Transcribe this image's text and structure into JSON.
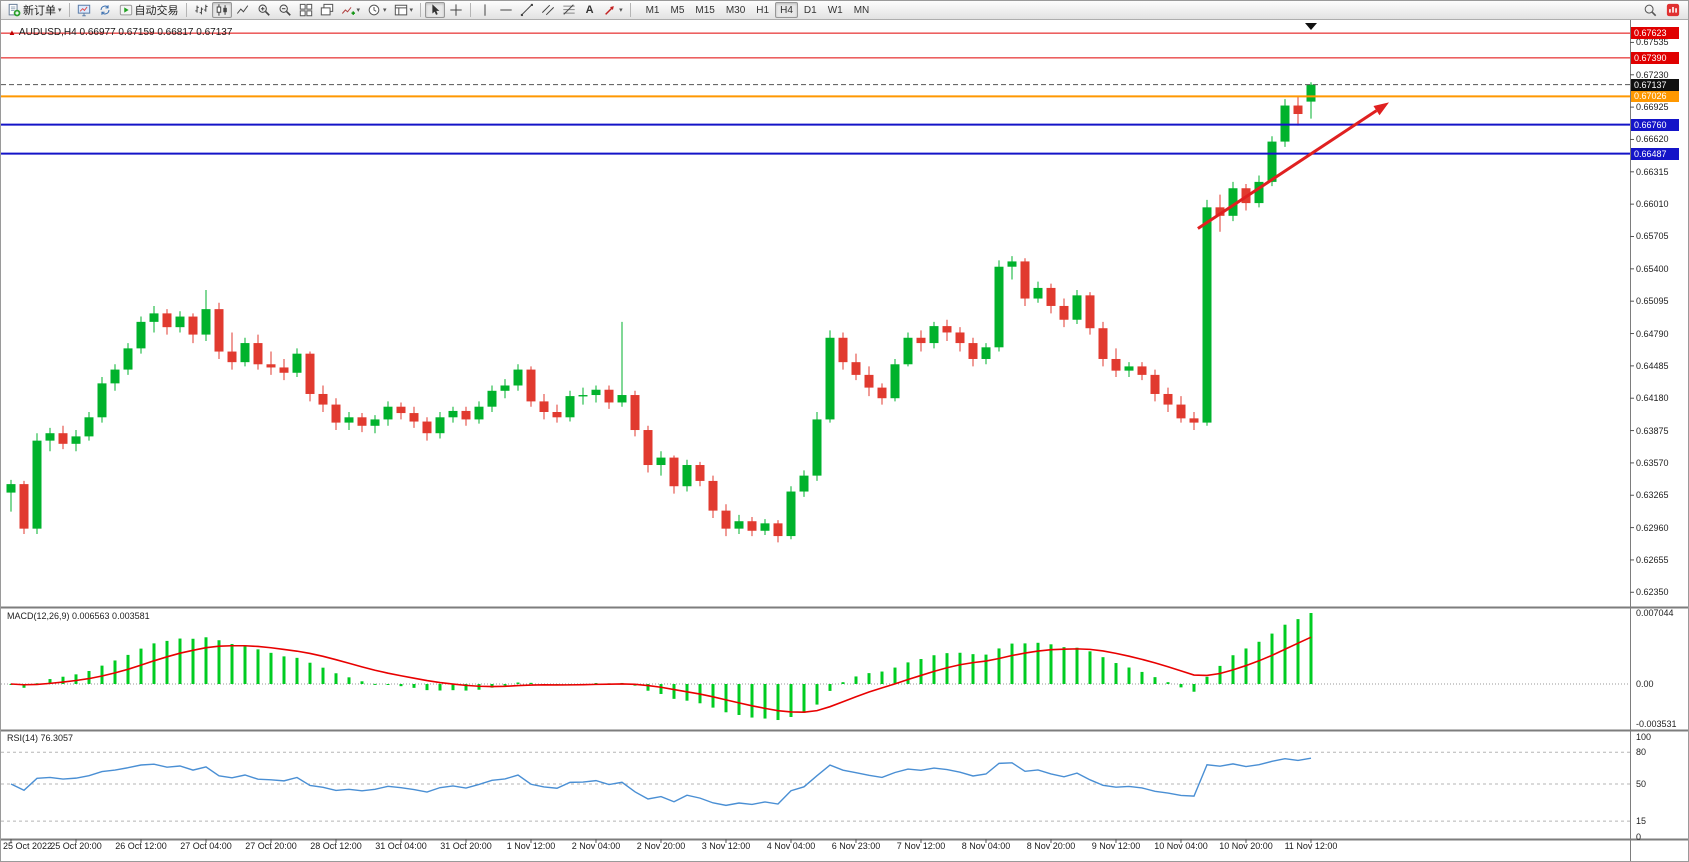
{
  "toolbar": {
    "new_order_label": "新订单",
    "auto_trading_label": "自动交易",
    "text_tool_label": "A",
    "timeframes": [
      "M1",
      "M5",
      "M15",
      "M30",
      "H1",
      "H4",
      "D1",
      "W1",
      "MN"
    ],
    "active_timeframe": "H4"
  },
  "chart": {
    "symbol_ohlc_label": "AUDUSD,H4 0.66977 0.67159 0.66817 0.67137"
  },
  "chart_data": {
    "type": "candlestick",
    "symbol": "AUDUSD",
    "timeframe": "H4",
    "ohlc": {
      "open": 0.66977,
      "high": 0.67159,
      "low": 0.66817,
      "close": 0.67137
    },
    "colors": {
      "up": "#00b22c",
      "down": "#e13a2f",
      "macd_hist": "#00cc22",
      "macd_signal": "#e80000",
      "rsi": "#4a8fd4",
      "resistance": "#e00000",
      "pivot": "#ff9800",
      "support": "#1414c8",
      "arrow": "#e02020",
      "current": "#101010"
    },
    "price_axis_ticks": [
      "0.67535",
      "0.67230",
      "0.66925",
      "0.66620",
      "0.66315",
      "0.66010",
      "0.65705",
      "0.65400",
      "0.65095",
      "0.64790",
      "0.64485",
      "0.64180",
      "0.63875",
      "0.63570",
      "0.63265",
      "0.62960",
      "0.62655",
      "0.62350"
    ],
    "hlines": [
      {
        "price": 0.67623,
        "label": "0.67623",
        "color": "#e00000",
        "width": 1
      },
      {
        "price": 0.6739,
        "label": "0.67390",
        "color": "#e00000",
        "width": 1
      },
      {
        "price": 0.67026,
        "label": "0.67026",
        "color": "#ff9800",
        "width": 2
      },
      {
        "price": 0.6676,
        "label": "0.66760",
        "color": "#1414c8",
        "width": 2
      },
      {
        "price": 0.66487,
        "label": "0.66487",
        "color": "#1414c8",
        "width": 2
      }
    ],
    "current_price": {
      "value": 0.67137,
      "label": "0.67137"
    },
    "arrow": {
      "from_index": 91.3,
      "from_price": 0.6578,
      "to_index": 106,
      "to_price": 0.6697
    },
    "time_labels": [
      "25 Oct 2022",
      "25 Oct 20:00",
      "26 Oct 12:00",
      "27 Oct 04:00",
      "27 Oct 20:00",
      "28 Oct 12:00",
      "31 Oct 04:00",
      "31 Oct 20:00",
      "1 Nov 12:00",
      "2 Nov 04:00",
      "2 Nov 20:00",
      "3 Nov 12:00",
      "4 Nov 04:00",
      "6 Nov 23:00",
      "7 Nov 12:00",
      "8 Nov 04:00",
      "8 Nov 20:00",
      "9 Nov 12:00",
      "10 Nov 04:00",
      "10 Nov 20:00",
      "11 Nov 12:00"
    ],
    "label_every_n_candles": 5,
    "candles": [
      [
        0.6329,
        0.6341,
        0.6311,
        0.6337
      ],
      [
        0.6337,
        0.634,
        0.629,
        0.6295
      ],
      [
        0.6295,
        0.6385,
        0.629,
        0.6378
      ],
      [
        0.6378,
        0.639,
        0.6368,
        0.6385
      ],
      [
        0.6385,
        0.6392,
        0.637,
        0.6375
      ],
      [
        0.6375,
        0.6388,
        0.6368,
        0.6382
      ],
      [
        0.6382,
        0.6405,
        0.6378,
        0.64
      ],
      [
        0.64,
        0.6438,
        0.6395,
        0.6432
      ],
      [
        0.6432,
        0.645,
        0.6425,
        0.6445
      ],
      [
        0.6445,
        0.647,
        0.644,
        0.6465
      ],
      [
        0.6465,
        0.6495,
        0.646,
        0.649
      ],
      [
        0.649,
        0.6505,
        0.648,
        0.6498
      ],
      [
        0.6498,
        0.6502,
        0.6478,
        0.6485
      ],
      [
        0.6485,
        0.65,
        0.648,
        0.6495
      ],
      [
        0.6495,
        0.6498,
        0.647,
        0.6478
      ],
      [
        0.6478,
        0.652,
        0.6472,
        0.6502
      ],
      [
        0.6502,
        0.6508,
        0.6455,
        0.6462
      ],
      [
        0.6462,
        0.648,
        0.6445,
        0.6452
      ],
      [
        0.6452,
        0.6475,
        0.6448,
        0.647
      ],
      [
        0.647,
        0.6478,
        0.6445,
        0.645
      ],
      [
        0.645,
        0.6462,
        0.644,
        0.6447
      ],
      [
        0.6447,
        0.6455,
        0.6435,
        0.6442
      ],
      [
        0.6442,
        0.6465,
        0.6438,
        0.646
      ],
      [
        0.646,
        0.6462,
        0.6415,
        0.6422
      ],
      [
        0.6422,
        0.643,
        0.6405,
        0.6412
      ],
      [
        0.6412,
        0.6418,
        0.6388,
        0.6395
      ],
      [
        0.6395,
        0.6405,
        0.6388,
        0.64
      ],
      [
        0.64,
        0.6404,
        0.6386,
        0.6392
      ],
      [
        0.6392,
        0.6402,
        0.6385,
        0.6398
      ],
      [
        0.6398,
        0.6415,
        0.6392,
        0.641
      ],
      [
        0.641,
        0.6414,
        0.6398,
        0.6404
      ],
      [
        0.6404,
        0.641,
        0.639,
        0.6396
      ],
      [
        0.6396,
        0.64,
        0.6378,
        0.6385
      ],
      [
        0.6385,
        0.6405,
        0.638,
        0.64
      ],
      [
        0.64,
        0.641,
        0.6395,
        0.6406
      ],
      [
        0.6406,
        0.641,
        0.6392,
        0.6398
      ],
      [
        0.6398,
        0.6415,
        0.6394,
        0.641
      ],
      [
        0.641,
        0.643,
        0.6405,
        0.6425
      ],
      [
        0.6425,
        0.6436,
        0.6418,
        0.643
      ],
      [
        0.643,
        0.645,
        0.6425,
        0.6445
      ],
      [
        0.6445,
        0.6448,
        0.641,
        0.6415
      ],
      [
        0.6415,
        0.6422,
        0.6398,
        0.6405
      ],
      [
        0.6405,
        0.6412,
        0.6395,
        0.64
      ],
      [
        0.64,
        0.6425,
        0.6396,
        0.642
      ],
      [
        0.642,
        0.6428,
        0.6412,
        0.6421
      ],
      [
        0.6421,
        0.643,
        0.6414,
        0.6426
      ],
      [
        0.6426,
        0.643,
        0.6408,
        0.6414
      ],
      [
        0.6414,
        0.649,
        0.641,
        0.6421
      ],
      [
        0.6421,
        0.6425,
        0.6382,
        0.6388
      ],
      [
        0.6388,
        0.6392,
        0.6348,
        0.6355
      ],
      [
        0.6355,
        0.6368,
        0.6345,
        0.6362
      ],
      [
        0.6362,
        0.6364,
        0.6328,
        0.6335
      ],
      [
        0.6335,
        0.636,
        0.633,
        0.6355
      ],
      [
        0.6355,
        0.6358,
        0.6335,
        0.634
      ],
      [
        0.634,
        0.6345,
        0.6305,
        0.6312
      ],
      [
        0.6312,
        0.6318,
        0.6288,
        0.6295
      ],
      [
        0.6295,
        0.6308,
        0.629,
        0.6302
      ],
      [
        0.6302,
        0.6306,
        0.6288,
        0.6293
      ],
      [
        0.6293,
        0.6304,
        0.6289,
        0.63
      ],
      [
        0.63,
        0.6303,
        0.6282,
        0.6288
      ],
      [
        0.6288,
        0.6335,
        0.6285,
        0.633
      ],
      [
        0.633,
        0.635,
        0.6325,
        0.6345
      ],
      [
        0.6345,
        0.6405,
        0.634,
        0.6398
      ],
      [
        0.6398,
        0.6482,
        0.6395,
        0.6475
      ],
      [
        0.6475,
        0.648,
        0.6445,
        0.6452
      ],
      [
        0.6452,
        0.646,
        0.6435,
        0.644
      ],
      [
        0.644,
        0.6448,
        0.642,
        0.6428
      ],
      [
        0.6428,
        0.6432,
        0.6412,
        0.6418
      ],
      [
        0.6418,
        0.6455,
        0.6415,
        0.645
      ],
      [
        0.645,
        0.648,
        0.6448,
        0.6475
      ],
      [
        0.6475,
        0.6482,
        0.6462,
        0.647
      ],
      [
        0.647,
        0.649,
        0.6465,
        0.6486
      ],
      [
        0.6486,
        0.6492,
        0.6472,
        0.648
      ],
      [
        0.648,
        0.6485,
        0.6462,
        0.647
      ],
      [
        0.647,
        0.6475,
        0.6448,
        0.6455
      ],
      [
        0.6455,
        0.647,
        0.645,
        0.6466
      ],
      [
        0.6466,
        0.6548,
        0.6462,
        0.6542
      ],
      [
        0.6542,
        0.6552,
        0.653,
        0.6547
      ],
      [
        0.6547,
        0.655,
        0.6505,
        0.6512
      ],
      [
        0.6512,
        0.6528,
        0.6508,
        0.6522
      ],
      [
        0.6522,
        0.6526,
        0.6498,
        0.6505
      ],
      [
        0.6505,
        0.6512,
        0.6485,
        0.6492
      ],
      [
        0.6492,
        0.652,
        0.6488,
        0.6515
      ],
      [
        0.6515,
        0.6518,
        0.6478,
        0.6484
      ],
      [
        0.6484,
        0.649,
        0.6448,
        0.6455
      ],
      [
        0.6455,
        0.6465,
        0.6438,
        0.6444
      ],
      [
        0.6444,
        0.6452,
        0.6438,
        0.6448
      ],
      [
        0.6448,
        0.6452,
        0.6435,
        0.644
      ],
      [
        0.644,
        0.6445,
        0.6415,
        0.6422
      ],
      [
        0.6422,
        0.6428,
        0.6405,
        0.6412
      ],
      [
        0.6412,
        0.642,
        0.6395,
        0.6399
      ],
      [
        0.6399,
        0.6405,
        0.6388,
        0.6395
      ],
      [
        0.6395,
        0.6605,
        0.6392,
        0.6598
      ],
      [
        0.6598,
        0.661,
        0.6575,
        0.659
      ],
      [
        0.659,
        0.6622,
        0.6585,
        0.6616
      ],
      [
        0.6616,
        0.662,
        0.6595,
        0.6602
      ],
      [
        0.6602,
        0.6628,
        0.6598,
        0.6622
      ],
      [
        0.6622,
        0.6665,
        0.6618,
        0.666
      ],
      [
        0.666,
        0.67,
        0.6655,
        0.6694
      ],
      [
        0.6694,
        0.6702,
        0.6675,
        0.6686
      ],
      [
        0.66977,
        0.67159,
        0.66817,
        0.67137
      ]
    ],
    "macd": {
      "label": "MACD(12,26,9) 0.006563 0.003581",
      "fast": 12,
      "slow": 26,
      "signal": 9,
      "values_display": [
        0.006563,
        0.003581
      ],
      "axis_labels": [
        "0.007044",
        "0.00",
        "-0.003531"
      ],
      "max": 0.007044,
      "min": -0.003531
    },
    "rsi": {
      "label": "RSI(14) 76.3057",
      "period": 14,
      "value": 76.3057,
      "axis_labels": [
        "100",
        "80",
        "50",
        "15",
        "0"
      ],
      "levels": [
        80,
        50,
        15
      ]
    }
  }
}
